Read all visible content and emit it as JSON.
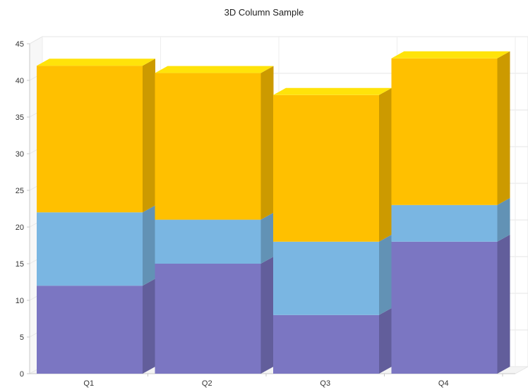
{
  "chart_data": {
    "type": "bar",
    "stacked": true,
    "three_d": true,
    "title": "3D Column Sample",
    "categories": [
      "Q1",
      "Q2",
      "Q3",
      "Q4"
    ],
    "series": [
      {
        "values": [
          12,
          15,
          8,
          18
        ],
        "color": "#7b76c2"
      },
      {
        "values": [
          10,
          6,
          10,
          5
        ],
        "color": "#7ab6e2"
      },
      {
        "values": [
          20,
          20,
          20,
          20
        ],
        "color": "#ffc000"
      }
    ],
    "ylim": [
      0,
      45
    ],
    "yticks": [
      0,
      5,
      10,
      15,
      20,
      25,
      30,
      35,
      40,
      45
    ],
    "grid": true,
    "legend": "none"
  }
}
